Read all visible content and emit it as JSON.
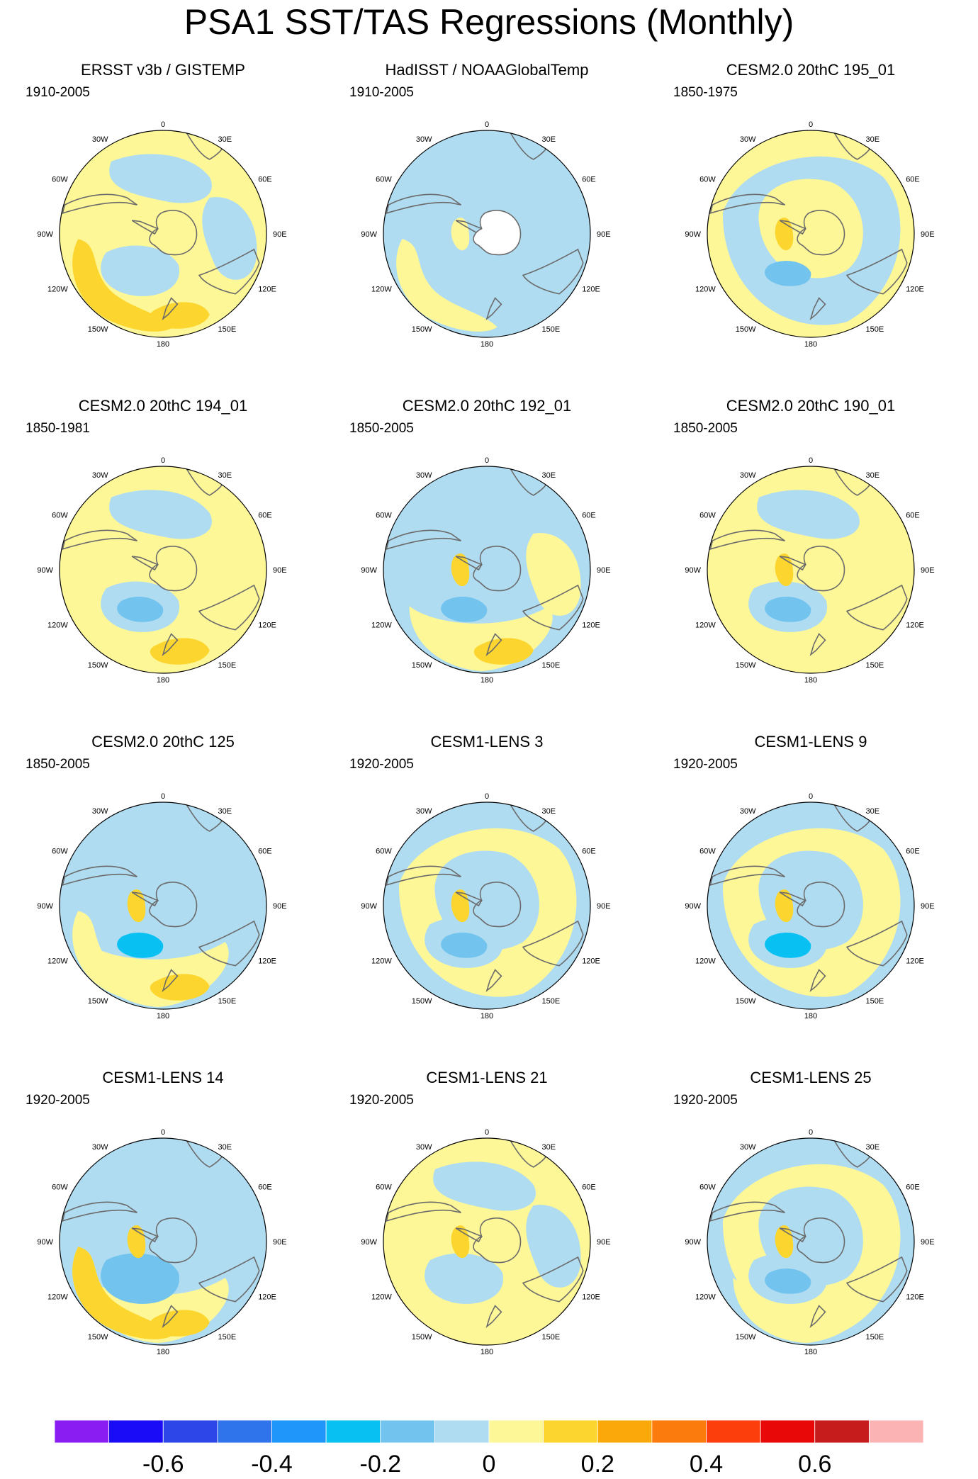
{
  "title": "PSA1 SST/TAS Regressions (Monthly)",
  "colors": {
    "ocean_negative": "#b0dcf2",
    "ocean_positive": "#fdf797",
    "strong_negative": "#72c4ee",
    "stronger_negative": "#08c1f2",
    "strong_positive": "#fcd62e",
    "missing": "#ffffff",
    "coast": "#6b6b6b"
  },
  "panels": [
    {
      "title": "ERSST v3b / GISTEMP",
      "years": "1910-2005"
    },
    {
      "title": "HadISST / NOAAGlobalTemp",
      "years": "1910-2005"
    },
    {
      "title": "CESM2.0 20thC 195_01",
      "years": "1850-1975"
    },
    {
      "title": "CESM2.0 20thC 194_01",
      "years": "1850-1981"
    },
    {
      "title": "CESM2.0 20thC 192_01",
      "years": "1850-2005"
    },
    {
      "title": "CESM2.0 20thC 190_01",
      "years": "1850-2005"
    },
    {
      "title": "CESM2.0 20thC 125",
      "years": "1850-2005"
    },
    {
      "title": "CESM1-LENS 3",
      "years": "1920-2005"
    },
    {
      "title": "CESM1-LENS 9",
      "years": "1920-2005"
    },
    {
      "title": "CESM1-LENS 14",
      "years": "1920-2005"
    },
    {
      "title": "CESM1-LENS 21",
      "years": "1920-2005"
    },
    {
      "title": "CESM1-LENS 25",
      "years": "1920-2005"
    }
  ],
  "longitude_labels": [
    "0",
    "30E",
    "60E",
    "90E",
    "120E",
    "150E",
    "180",
    "150W",
    "120W",
    "90W",
    "60W",
    "30W"
  ],
  "chart_data": {
    "type": "heatmap",
    "title": "PSA1 SST/TAS Regressions (Monthly)",
    "projection": "south polar stereographic",
    "colorbar": {
      "levels": [
        -0.7,
        -0.6,
        -0.5,
        -0.4,
        -0.3,
        -0.2,
        -0.1,
        0,
        0.1,
        0.2,
        0.3,
        0.4,
        0.5,
        0.6,
        0.7
      ],
      "colors": [
        "#8a1ef2",
        "#1a0cf7",
        "#2d46e8",
        "#3074ec",
        "#1e96fa",
        "#08c1f2",
        "#72c4ee",
        "#b0dcf2",
        "#fdf797",
        "#fcd62e",
        "#fba80b",
        "#fb7b0c",
        "#fb3e0c",
        "#e90808",
        "#c71c1c",
        "#fbb3b3"
      ],
      "tick_labels": [
        "-0.6",
        "-0.4",
        "-0.2",
        "0",
        "0.2",
        "0.4",
        "0.6"
      ],
      "tick_values": [
        -0.6,
        -0.4,
        -0.2,
        0,
        0.2,
        0.4,
        0.6
      ]
    },
    "panels": [
      {
        "name": "ERSST v3b / GISTEMP",
        "period": "1910-2005",
        "value_range": [
          -0.1,
          0.2
        ],
        "dominant_sign": "positive"
      },
      {
        "name": "HadISST / NOAAGlobalTemp",
        "period": "1910-2005",
        "value_range": [
          -0.2,
          0.1
        ],
        "dominant_sign": "negative"
      },
      {
        "name": "CESM2.0 20thC 195_01",
        "period": "1850-1975",
        "value_range": [
          -0.2,
          0.2
        ],
        "dominant_sign": "mixed"
      },
      {
        "name": "CESM2.0 20thC 194_01",
        "period": "1850-1981",
        "value_range": [
          -0.2,
          0.2
        ],
        "dominant_sign": "mixed"
      },
      {
        "name": "CESM2.0 20thC 192_01",
        "period": "1850-2005",
        "value_range": [
          -0.3,
          0.2
        ],
        "dominant_sign": "mixed"
      },
      {
        "name": "CESM2.0 20thC 190_01",
        "period": "1850-2005",
        "value_range": [
          -0.2,
          0.2
        ],
        "dominant_sign": "mixed"
      },
      {
        "name": "CESM2.0 20thC 125",
        "period": "1850-2005",
        "value_range": [
          -0.3,
          0.2
        ],
        "dominant_sign": "mixed"
      },
      {
        "name": "CESM1-LENS 3",
        "period": "1920-2005",
        "value_range": [
          -0.3,
          0.1
        ],
        "dominant_sign": "mixed"
      },
      {
        "name": "CESM1-LENS 9",
        "period": "1920-2005",
        "value_range": [
          -0.3,
          0.2
        ],
        "dominant_sign": "mixed"
      },
      {
        "name": "CESM1-LENS 14",
        "period": "1920-2005",
        "value_range": [
          -0.2,
          0.2
        ],
        "dominant_sign": "mixed"
      },
      {
        "name": "CESM1-LENS 21",
        "period": "1920-2005",
        "value_range": [
          -0.2,
          0.2
        ],
        "dominant_sign": "mixed"
      },
      {
        "name": "CESM1-LENS 25",
        "period": "1920-2005",
        "value_range": [
          -0.3,
          0.2
        ],
        "dominant_sign": "mixed"
      }
    ]
  }
}
